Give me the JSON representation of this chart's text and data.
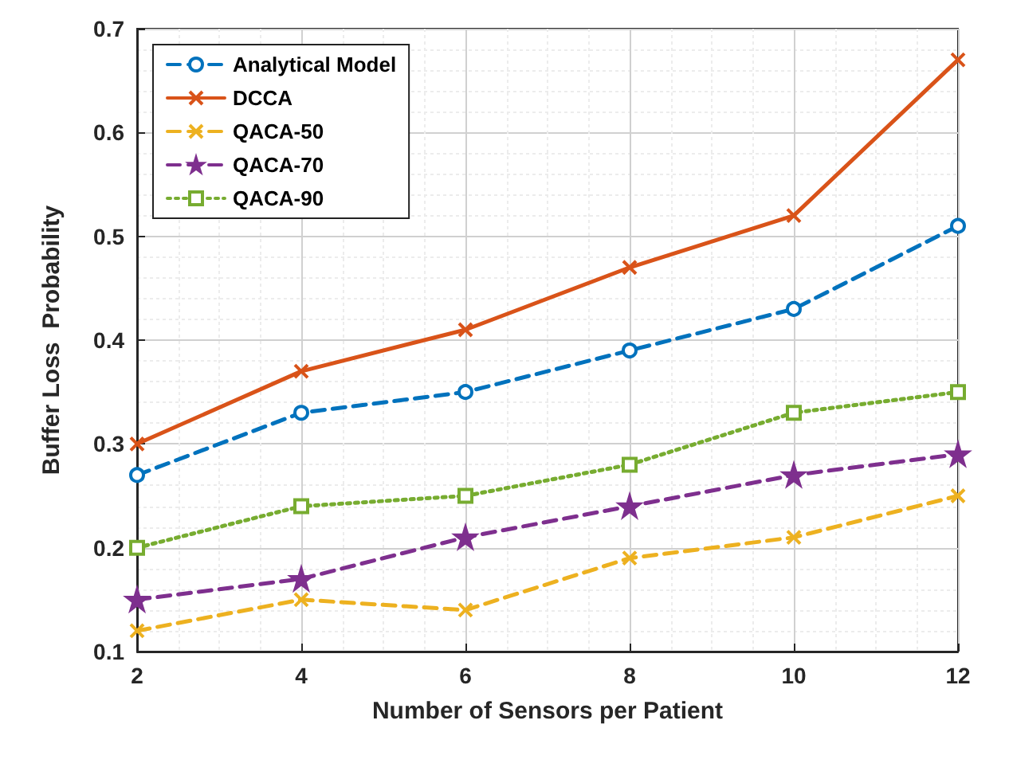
{
  "chart_data": {
    "type": "line",
    "xlabel": "Number of Sensors per Patient",
    "ylabel": "Buffer Loss  Probability",
    "x": [
      2,
      4,
      6,
      8,
      10,
      12
    ],
    "series": [
      {
        "name": "Analytical Model",
        "color": "#0072bd",
        "marker": "circle",
        "line_style": "dashed",
        "values": [
          0.27,
          0.33,
          0.35,
          0.39,
          0.43,
          0.51
        ]
      },
      {
        "name": "DCCA",
        "color": "#d95319",
        "marker": "cross",
        "line_style": "solid",
        "values": [
          0.3,
          0.37,
          0.41,
          0.47,
          0.52,
          0.67
        ]
      },
      {
        "name": "QACA-50",
        "color": "#edb120",
        "marker": "cross",
        "line_style": "dashed",
        "values": [
          0.12,
          0.15,
          0.14,
          0.19,
          0.21,
          0.25
        ]
      },
      {
        "name": "QACA-70",
        "color": "#7e2f8e",
        "marker": "star",
        "line_style": "dashed",
        "values": [
          0.15,
          0.17,
          0.21,
          0.24,
          0.27,
          0.29
        ]
      },
      {
        "name": "QACA-90",
        "color": "#77ac30",
        "marker": "square",
        "line_style": "dotted",
        "values": [
          0.2,
          0.24,
          0.25,
          0.28,
          0.33,
          0.35
        ]
      }
    ],
    "xlim": [
      2,
      12
    ],
    "xticks": [
      2,
      4,
      6,
      8,
      10,
      12
    ],
    "ylim": [
      0.1,
      0.7
    ],
    "yticks": [
      0.1,
      0.2,
      0.3,
      0.4,
      0.5,
      0.6,
      0.7
    ],
    "grid": true,
    "legend": "top left"
  }
}
